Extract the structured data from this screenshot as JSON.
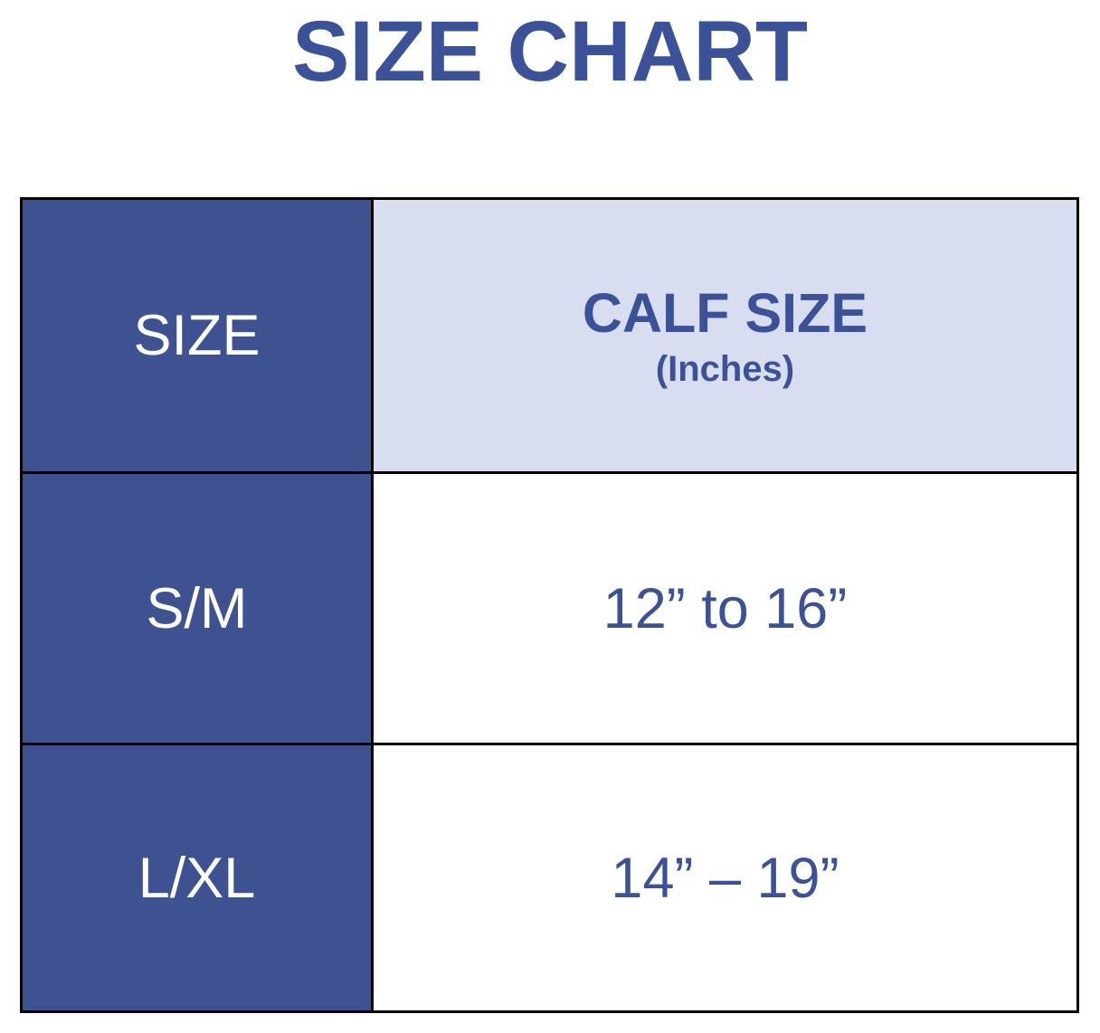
{
  "page_title": "SIZE CHART",
  "colors": {
    "title_text": "#3b5298",
    "navy_cell_background": "#3e5191",
    "lavender_header_background": "#d9ddf0",
    "value_text": "#3b5298",
    "border": "#000000",
    "navy_cell_text": "#ffffff"
  },
  "table": {
    "header": {
      "size_label": "SIZE",
      "calf_label": "CALF SIZE",
      "calf_unit": "(Inches)"
    },
    "rows": [
      {
        "size": "S/M",
        "calf": "12” to 16”"
      },
      {
        "size": "L/XL",
        "calf": "14” – 19”"
      }
    ]
  },
  "chart_data": {
    "type": "table",
    "title": "SIZE CHART",
    "columns": [
      "SIZE",
      "CALF SIZE (Inches)"
    ],
    "rows": [
      [
        "S/M",
        "12” to 16”"
      ],
      [
        "L/XL",
        "14” – 19”"
      ]
    ],
    "layout_hints": {
      "header_row_style": "left cell navy with white text, right cell lavender with navy bold text",
      "body_row_style": "left cells navy with white text, right cells white with navy text",
      "grid": "black borders, approx 3px"
    }
  }
}
